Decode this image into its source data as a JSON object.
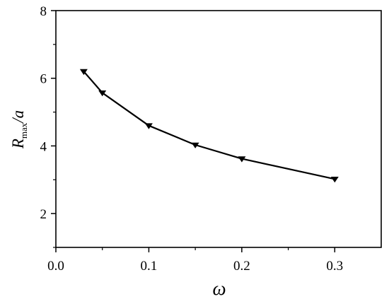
{
  "chart_data": {
    "type": "line",
    "title": "",
    "xlabel": "ω",
    "ylabel": {
      "main": "R",
      "subscript": "max",
      "suffix": "/a"
    },
    "xlim": [
      0.0,
      0.35
    ],
    "ylim": [
      1.0,
      8.0
    ],
    "x_ticks": [
      "0.0",
      "0.1",
      "0.2",
      "0.3"
    ],
    "x_tick_values": [
      0.0,
      0.1,
      0.2,
      0.3
    ],
    "y_ticks": [
      "2",
      "4",
      "6",
      "8"
    ],
    "y_tick_values": [
      2,
      4,
      6,
      8
    ],
    "grid": false,
    "legend": "none",
    "marker": "down-triangle",
    "color": "#000000",
    "series": [
      {
        "x": [
          0.03,
          0.05,
          0.1,
          0.15,
          0.2,
          0.3
        ],
        "values": [
          6.2,
          5.57,
          4.6,
          4.03,
          3.62,
          3.02
        ]
      }
    ]
  }
}
